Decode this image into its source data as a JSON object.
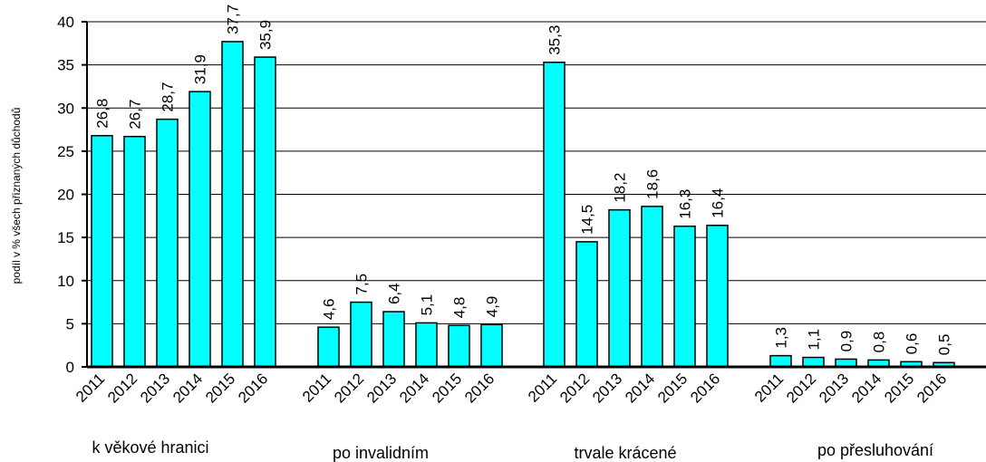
{
  "chart_data": {
    "type": "bar",
    "ylabel": "podíl v % všech přiznaných důchodů",
    "ylim": [
      0,
      40
    ],
    "yticks": [
      0,
      5,
      10,
      15,
      20,
      25,
      30,
      35,
      40
    ],
    "grid": true,
    "bar_color": "#00ffff",
    "years": [
      "2011",
      "2012",
      "2013",
      "2014",
      "2015",
      "2016"
    ],
    "groups": [
      {
        "label": "k věkové hranici",
        "values": [
          26.8,
          26.7,
          28.7,
          31.9,
          37.7,
          35.9
        ],
        "labels": [
          "26,8",
          "26,7",
          "28,7",
          "31,9",
          "37,7",
          "35,9"
        ]
      },
      {
        "label": "po invalidním",
        "values": [
          4.6,
          7.5,
          6.4,
          5.1,
          4.8,
          4.9
        ],
        "labels": [
          "4,6",
          "7,5",
          "6,4",
          "5,1",
          "4,8",
          "4,9"
        ]
      },
      {
        "label": "trvale krácené",
        "values": [
          35.3,
          14.5,
          18.2,
          18.6,
          16.3,
          16.4
        ],
        "labels": [
          "35,3",
          "14,5",
          "18,2",
          "18,6",
          "16,3",
          "16,4"
        ]
      },
      {
        "label": "po přesluhování",
        "values": [
          1.3,
          1.1,
          0.9,
          0.8,
          0.6,
          0.5
        ],
        "labels": [
          "1,3",
          "1,1",
          "0,9",
          "0,8",
          "0,6",
          "0,5"
        ]
      }
    ]
  }
}
